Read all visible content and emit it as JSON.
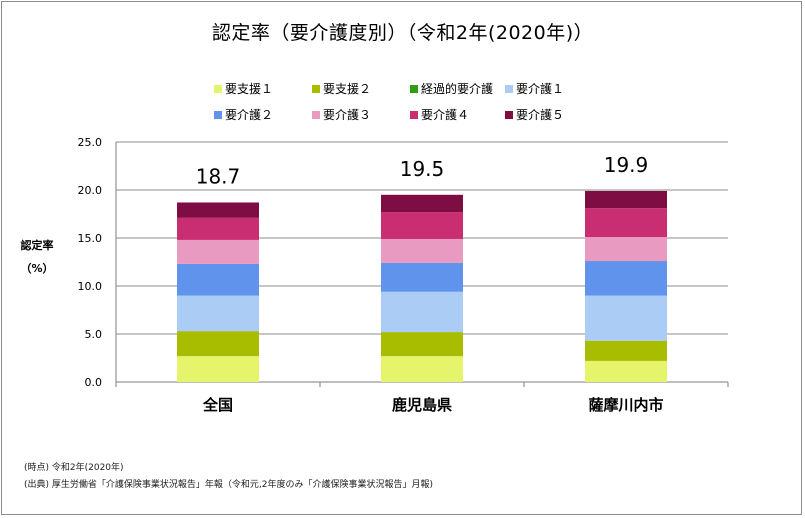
{
  "title": "認定率（要介護度別）（令和2年(2020年)）",
  "y_axis_label_line1": "認定率",
  "y_axis_label_line2": "（%）",
  "notes": {
    "time_point": "(時点) 令和2年(2020年)",
    "source": "(出典) 厚生労働省「介護保険事業状況報告」年報（令和元,2年度のみ「介護保険事業状況報告」月報)"
  },
  "chart_data": {
    "type": "bar",
    "stacked": true,
    "categories": [
      "全国",
      "鹿児島県",
      "薩摩川内市"
    ],
    "totals": [
      "18.7",
      "19.5",
      "19.9"
    ],
    "ylim": [
      0,
      25
    ],
    "yticks": [
      "0.0",
      "5.0",
      "10.0",
      "15.0",
      "20.0",
      "25.0"
    ],
    "grid": true,
    "legend_position": "top",
    "series": [
      {
        "name": "要支援１",
        "color": "#e5f46a",
        "values": [
          2.7,
          2.7,
          2.2
        ]
      },
      {
        "name": "要支援２",
        "color": "#a8bc00",
        "values": [
          2.6,
          2.5,
          2.1
        ]
      },
      {
        "name": "経過的要介護",
        "color": "#2e9e12",
        "values": [
          0.0,
          0.0,
          0.0
        ]
      },
      {
        "name": "要介護１",
        "color": "#abcdf5",
        "values": [
          3.7,
          4.2,
          4.7
        ]
      },
      {
        "name": "要介護２",
        "color": "#5f93ec",
        "values": [
          3.3,
          3.0,
          3.6
        ]
      },
      {
        "name": "要介護３",
        "color": "#e99ac1",
        "values": [
          2.5,
          2.5,
          2.5
        ]
      },
      {
        "name": "要介護４",
        "color": "#c92d72",
        "values": [
          2.3,
          2.8,
          3.0
        ]
      },
      {
        "name": "要介護５",
        "color": "#7e0d44",
        "values": [
          1.6,
          1.8,
          1.8
        ]
      }
    ]
  }
}
